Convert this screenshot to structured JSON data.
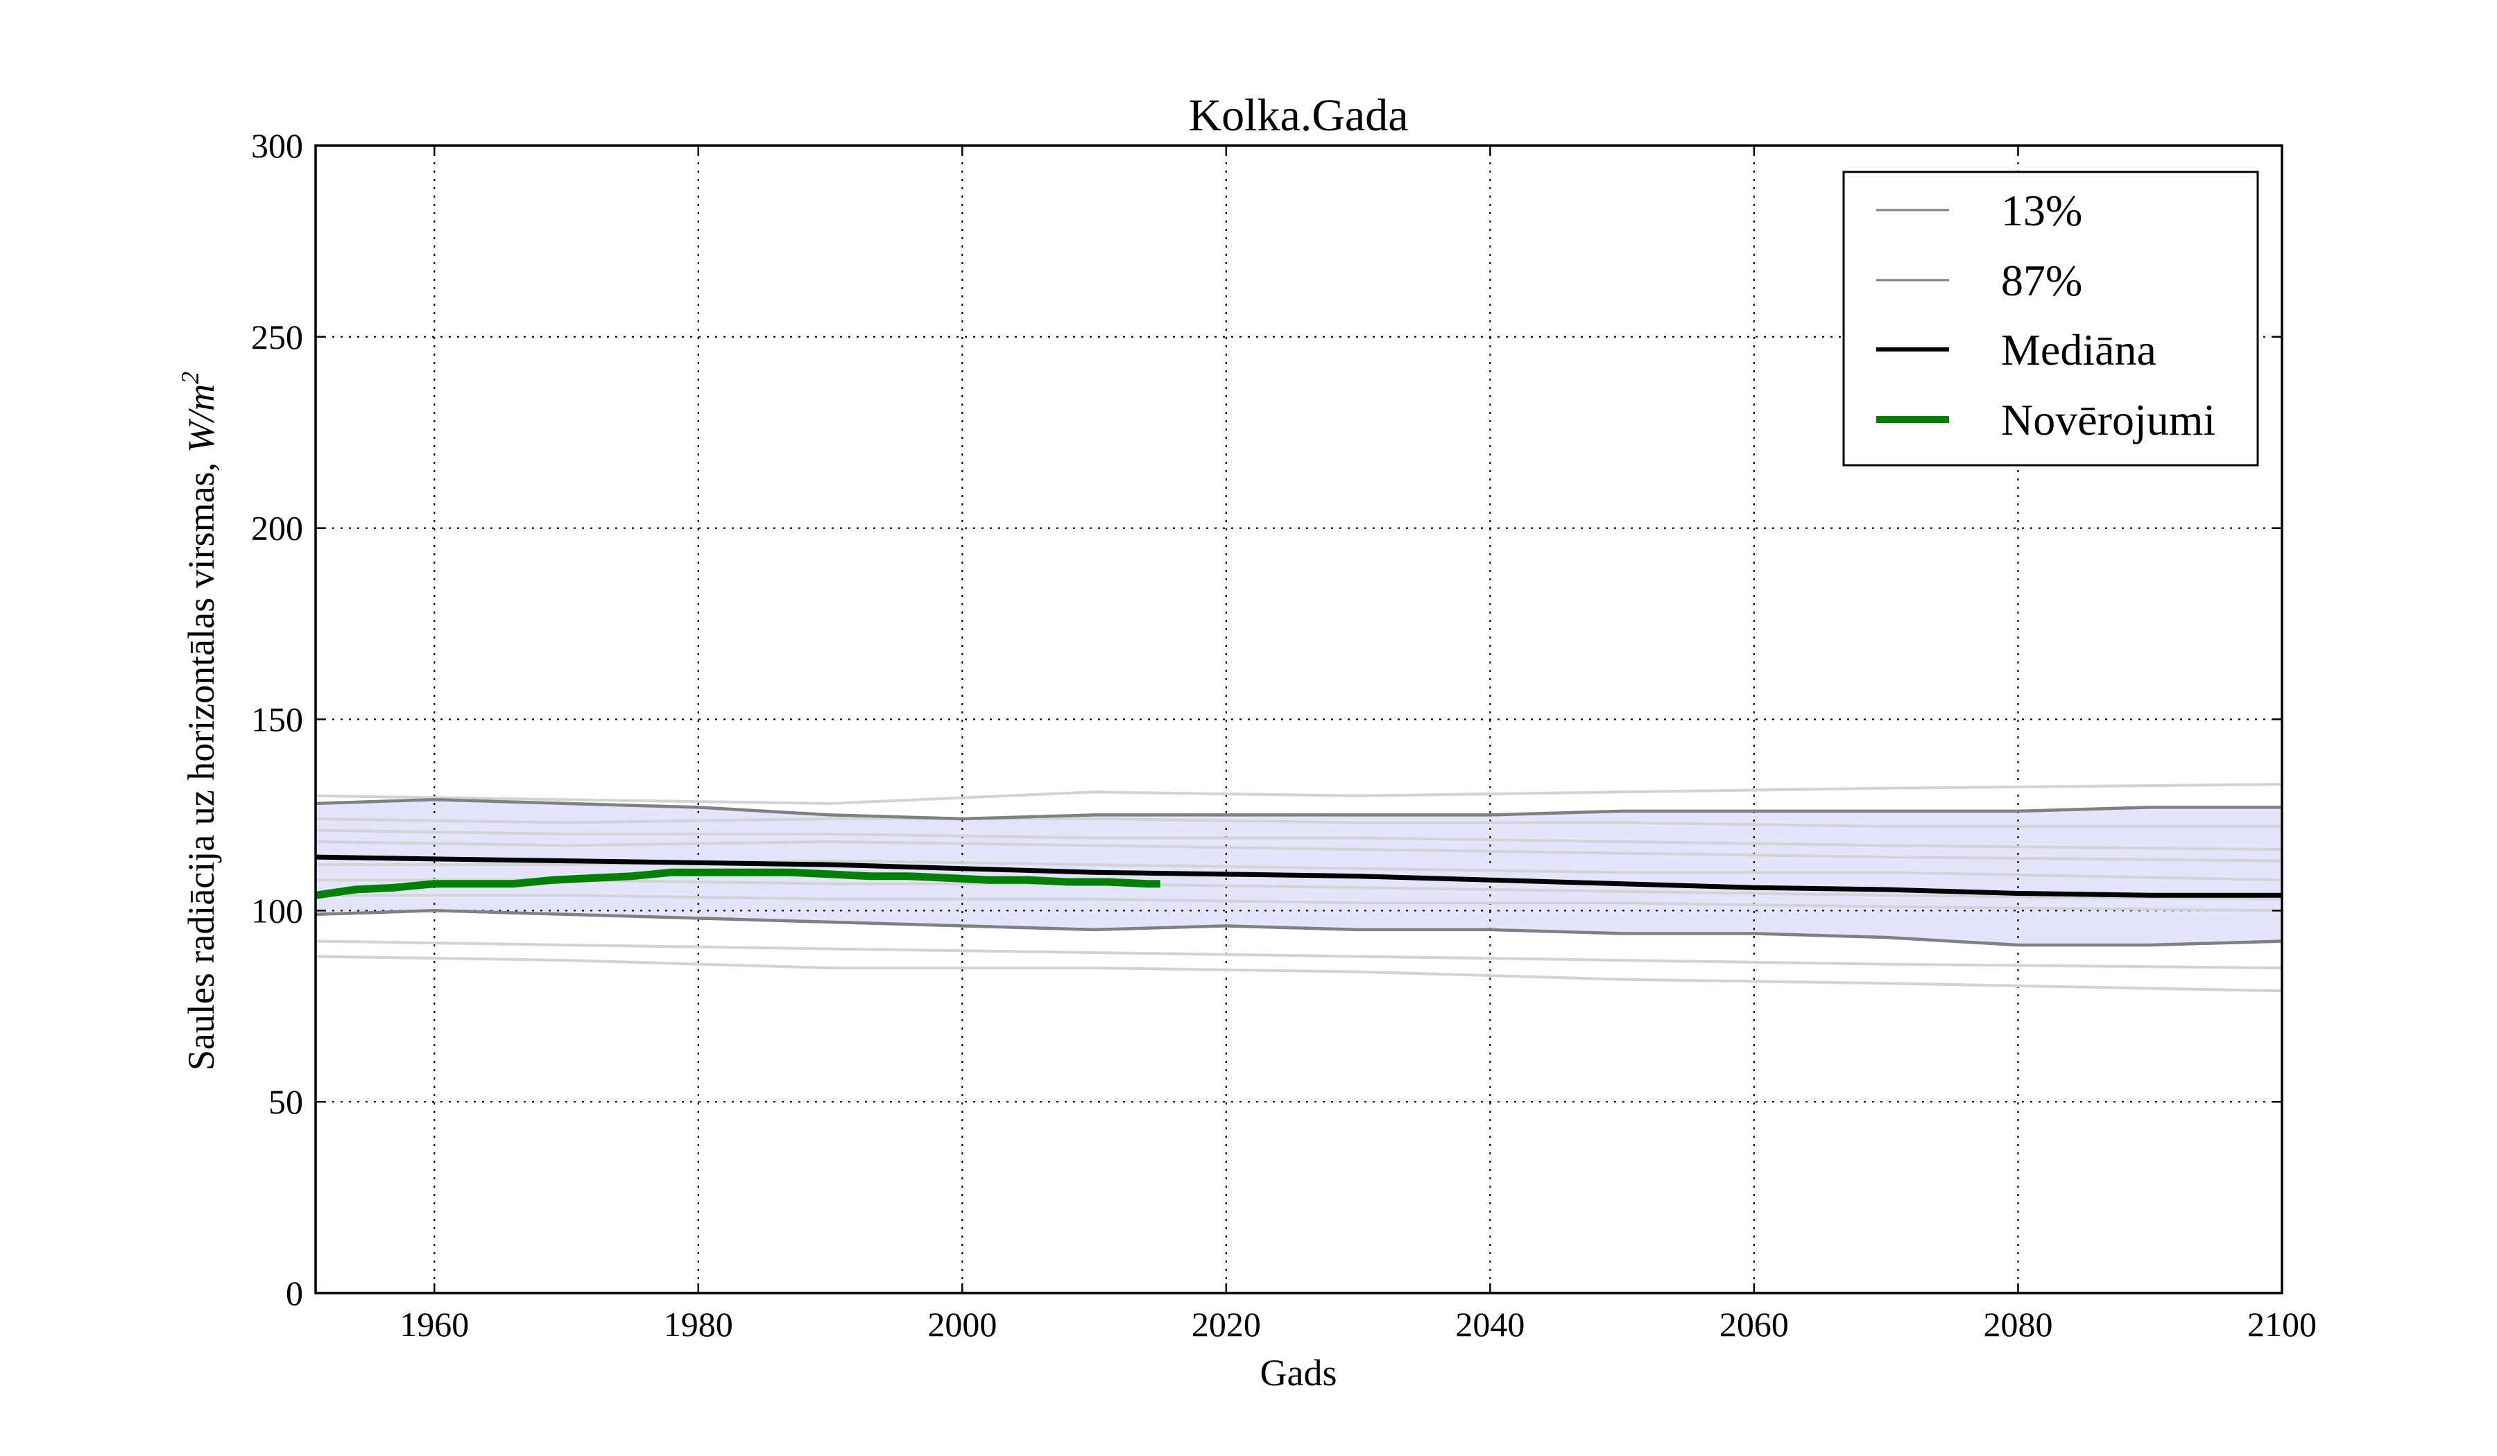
{
  "chart_data": {
    "type": "line",
    "title": "Kolka.Gada",
    "xlabel": "Gads",
    "ylabel": "Saules radiācija uz horizontālas virsmas,",
    "ylabel_unit_W": "W",
    "ylabel_unit_sep": "/",
    "ylabel_unit_m": "m",
    "ylabel_unit_exp": "2",
    "xlim": [
      1951,
      2100
    ],
    "ylim": [
      0,
      300
    ],
    "xticks": [
      "1960",
      "1980",
      "2000",
      "2020",
      "2040",
      "2060",
      "2080",
      "2100"
    ],
    "yticks": [
      "0",
      "50",
      "100",
      "150",
      "200",
      "250",
      "300"
    ],
    "grid": true,
    "legend_position": "upper-right",
    "band": {
      "fill": "#e4e4fc",
      "lower_series": "13%",
      "upper_series": "87%"
    },
    "series": [
      {
        "name": "13%",
        "color": "#808080",
        "x": [
          1951,
          1960,
          1970,
          1980,
          1990,
          2000,
          2010,
          2020,
          2030,
          2040,
          2050,
          2060,
          2070,
          2080,
          2090,
          2100
        ],
        "y": [
          99,
          100,
          99,
          98,
          97,
          96,
          95,
          96,
          95,
          95,
          94,
          94,
          93,
          91,
          91,
          92
        ]
      },
      {
        "name": "87%",
        "color": "#808080",
        "x": [
          1951,
          1960,
          1970,
          1980,
          1990,
          2000,
          2010,
          2020,
          2030,
          2040,
          2050,
          2060,
          2070,
          2080,
          2090,
          2100
        ],
        "y": [
          128,
          129,
          128,
          127,
          125,
          124,
          125,
          125,
          125,
          125,
          126,
          126,
          126,
          126,
          127,
          127
        ]
      },
      {
        "name": "Mediāna",
        "color": "#000000",
        "x": [
          1951,
          1960,
          1970,
          1980,
          1990,
          2000,
          2010,
          2020,
          2030,
          2040,
          2050,
          2060,
          2070,
          2080,
          2090,
          2100
        ],
        "y": [
          114,
          113.5,
          113,
          112.5,
          112,
          111,
          110,
          109.5,
          109,
          108,
          107,
          106,
          105.5,
          104.5,
          104,
          104
        ]
      },
      {
        "name": "Novērojumi",
        "color": "#008000",
        "x": [
          1951,
          1954,
          1957,
          1960,
          1963,
          1966,
          1969,
          1972,
          1975,
          1978,
          1981,
          1984,
          1987,
          1990,
          1993,
          1996,
          1999,
          2002,
          2005,
          2008,
          2011,
          2014,
          2015
        ],
        "y": [
          104,
          105.5,
          106,
          107,
          107,
          107,
          108,
          108.5,
          109,
          110,
          110,
          110,
          110,
          109.5,
          109,
          109,
          108.5,
          108,
          108,
          107.5,
          107.5,
          107,
          107
        ]
      }
    ],
    "ensemble_members": [
      {
        "color": "#d3d3d3",
        "x": [
          1951,
          1970,
          1990,
          2010,
          2030,
          2050,
          2070,
          2100
        ],
        "y": [
          130,
          129,
          128,
          131,
          130,
          131,
          132,
          133
        ]
      },
      {
        "color": "#d3d3d3",
        "x": [
          1951,
          1970,
          1990,
          2010,
          2030,
          2050,
          2070,
          2100
        ],
        "y": [
          124,
          123,
          124,
          124,
          123,
          123,
          122,
          122
        ]
      },
      {
        "color": "#d3d3d3",
        "x": [
          1951,
          1970,
          1990,
          2010,
          2030,
          2050,
          2070,
          2100
        ],
        "y": [
          121,
          120,
          120,
          119,
          119,
          118,
          117,
          116
        ]
      },
      {
        "color": "#d3d3d3",
        "x": [
          1951,
          1970,
          1990,
          2010,
          2030,
          2050,
          2070,
          2100
        ],
        "y": [
          118,
          117,
          118,
          117,
          116,
          115,
          114,
          113
        ]
      },
      {
        "color": "#d3d3d3",
        "x": [
          1951,
          1970,
          1990,
          2010,
          2030,
          2050,
          2070,
          2100
        ],
        "y": [
          112,
          112,
          113,
          112,
          111,
          110,
          110,
          108
        ]
      },
      {
        "color": "#d3d3d3",
        "x": [
          1951,
          1970,
          1990,
          2010,
          2030,
          2050,
          2070,
          2100
        ],
        "y": [
          108,
          108,
          107,
          107,
          106,
          105,
          104,
          103
        ]
      },
      {
        "color": "#d3d3d3",
        "x": [
          1951,
          1970,
          1990,
          2010,
          2030,
          2050,
          2070,
          2100
        ],
        "y": [
          104,
          104,
          103,
          103,
          102,
          102,
          101,
          100
        ]
      },
      {
        "color": "#d3d3d3",
        "x": [
          1951,
          1970,
          1990,
          2010,
          2030,
          2050,
          2070,
          2100
        ],
        "y": [
          92,
          91,
          90,
          89,
          88,
          87,
          86,
          85
        ]
      },
      {
        "color": "#d3d3d3",
        "x": [
          1951,
          1970,
          1990,
          2010,
          2030,
          2050,
          2070,
          2100
        ],
        "y": [
          88,
          87,
          85,
          85,
          84,
          82,
          81,
          79
        ]
      }
    ]
  }
}
